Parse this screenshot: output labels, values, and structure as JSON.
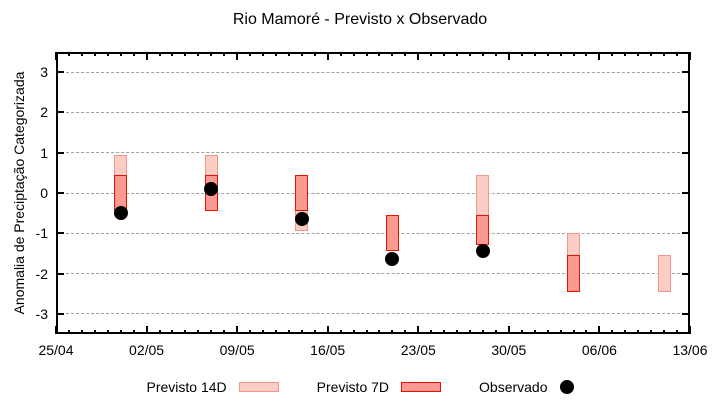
{
  "background_color": "#ffffff",
  "chart_data": {
    "type": "bar",
    "subtype": "range-bars-with-scatter-overlay",
    "title": "Rio Mamoré - Previsto x Observado",
    "xlabel": "",
    "ylabel": "Anomalia de Preciptação Categorizada",
    "ylim": [
      -3.5,
      3.5
    ],
    "yticks": [
      3,
      2,
      1,
      0,
      -1,
      -2,
      -3
    ],
    "grid": "horizontal-dotted",
    "grid_color": "#a0a0a0",
    "legend_position": "bottom",
    "x_axis": {
      "tick_labels": [
        "25/04",
        "02/05",
        "09/05",
        "16/05",
        "23/05",
        "30/05",
        "06/06",
        "13/06"
      ],
      "tick_days": [
        0,
        7,
        14,
        21,
        28,
        35,
        42,
        49
      ],
      "total_days": 49,
      "minor_tick_every_days": 1
    },
    "bar_dates": [
      "30/04",
      "07/05",
      "14/05",
      "21/05",
      "28/05",
      "04/06",
      "11/06"
    ],
    "series": [
      {
        "name": "Previsto 14D",
        "type": "range",
        "fill": "#fccdc5",
        "border": "#f0968a",
        "points": [
          {
            "day": 5,
            "date": "30/04",
            "low": -0.45,
            "high": 0.95
          },
          {
            "day": 12,
            "date": "07/05",
            "low": -0.45,
            "high": 0.95
          },
          {
            "day": 19,
            "date": "14/05",
            "low": -0.95,
            "high": 0.45
          },
          {
            "day": 26,
            "date": "21/05",
            "low": -1.45,
            "high": -0.55
          },
          {
            "day": 33,
            "date": "28/05",
            "low": -1.3,
            "high": 0.45
          },
          {
            "day": 40,
            "date": "04/06",
            "low": -2.45,
            "high": -1.0
          },
          {
            "day": 47,
            "date": "11/06",
            "low": -2.45,
            "high": -1.55
          }
        ]
      },
      {
        "name": "Previsto 7D",
        "type": "range",
        "fill": "#fb9a92",
        "border": "#e81200",
        "points": [
          {
            "day": 5,
            "date": "30/04",
            "low": -0.45,
            "high": 0.45
          },
          {
            "day": 12,
            "date": "07/05",
            "low": -0.45,
            "high": 0.45
          },
          {
            "day": 19,
            "date": "14/05",
            "low": -0.45,
            "high": 0.45
          },
          {
            "day": 26,
            "date": "21/05",
            "low": -1.45,
            "high": -0.55
          },
          {
            "day": 33,
            "date": "28/05",
            "low": -1.3,
            "high": -0.55
          },
          {
            "day": 40,
            "date": "04/06",
            "low": -2.45,
            "high": -1.55
          }
        ]
      },
      {
        "name": "Observado",
        "type": "scatter",
        "color": "#000000",
        "points": [
          {
            "day": 5,
            "date": "30/04",
            "value": -0.5
          },
          {
            "day": 12,
            "date": "07/05",
            "value": 0.1
          },
          {
            "day": 19,
            "date": "14/05",
            "value": -0.65
          },
          {
            "day": 26,
            "date": "21/05",
            "value": -1.65
          },
          {
            "day": 33,
            "date": "28/05",
            "value": -1.45
          }
        ]
      }
    ]
  }
}
